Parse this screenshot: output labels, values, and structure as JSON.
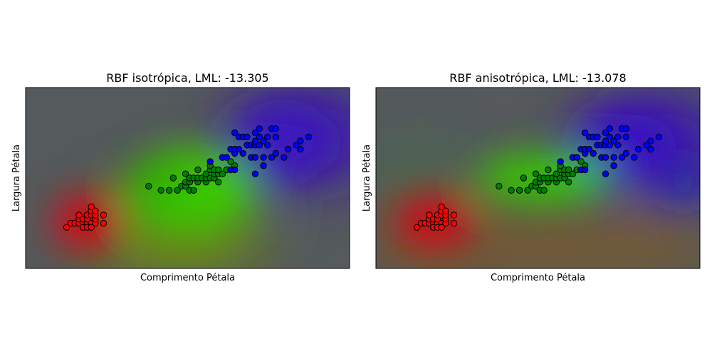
{
  "chart_data": [
    {
      "type": "scatter",
      "title": "RBF isotrópica, LML: -13.305",
      "xlabel": "Comprimento Pétala",
      "ylabel": "Largura Pétala",
      "xlim": [
        0.0,
        7.9
      ],
      "ylim": [
        -0.9,
        3.5
      ],
      "ticks": false,
      "background": "gaussian-process class probability map (red / green / blue)",
      "series": [
        {
          "color": "#ff0000",
          "points": [
            [
              1.0,
              0.1
            ],
            [
              1.1,
              0.2
            ],
            [
              1.2,
              0.2
            ],
            [
              1.3,
              0.2
            ],
            [
              1.4,
              0.2
            ],
            [
              1.5,
              0.2
            ],
            [
              1.6,
              0.2
            ],
            [
              1.7,
              0.2
            ],
            [
              1.9,
              0.2
            ],
            [
              1.3,
              0.3
            ],
            [
              1.4,
              0.3
            ],
            [
              1.5,
              0.3
            ],
            [
              1.7,
              0.3
            ],
            [
              1.3,
              0.4
            ],
            [
              1.5,
              0.4
            ],
            [
              1.6,
              0.4
            ],
            [
              1.7,
              0.4
            ],
            [
              1.9,
              0.4
            ],
            [
              1.6,
              0.5
            ],
            [
              1.7,
              0.5
            ],
            [
              1.6,
              0.6
            ],
            [
              1.4,
              0.1
            ],
            [
              1.5,
              0.1
            ],
            [
              1.6,
              0.1
            ]
          ]
        },
        {
          "color": "#008000",
          "points": [
            [
              3.0,
              1.1
            ],
            [
              3.3,
              1.0
            ],
            [
              3.5,
              1.0
            ],
            [
              3.7,
              1.0
            ],
            [
              3.5,
              1.0
            ],
            [
              3.6,
              1.3
            ],
            [
              3.8,
              1.1
            ],
            [
              3.9,
              1.1
            ],
            [
              3.9,
              1.2
            ],
            [
              3.9,
              1.4
            ],
            [
              4.0,
              1.0
            ],
            [
              4.0,
              1.2
            ],
            [
              4.0,
              1.3
            ],
            [
              4.1,
              1.0
            ],
            [
              4.1,
              1.3
            ],
            [
              4.2,
              1.2
            ],
            [
              4.2,
              1.3
            ],
            [
              4.2,
              1.5
            ],
            [
              4.3,
              1.3
            ],
            [
              4.4,
              1.2
            ],
            [
              4.4,
              1.3
            ],
            [
              4.4,
              1.4
            ],
            [
              4.5,
              1.3
            ],
            [
              4.5,
              1.5
            ],
            [
              4.5,
              1.6
            ],
            [
              4.6,
              1.3
            ],
            [
              4.6,
              1.4
            ],
            [
              4.6,
              1.5
            ],
            [
              4.7,
              1.2
            ],
            [
              4.7,
              1.4
            ],
            [
              4.7,
              1.5
            ],
            [
              4.8,
              1.4
            ],
            [
              4.8,
              1.8
            ],
            [
              4.9,
              1.5
            ],
            [
              5.0,
              1.7
            ],
            [
              5.1,
              1.6
            ]
          ]
        },
        {
          "color": "#0000ff",
          "points": [
            [
              4.5,
              1.7
            ],
            [
              4.8,
              1.8
            ],
            [
              4.9,
              1.8
            ],
            [
              5.0,
              1.5
            ],
            [
              5.0,
              2.0
            ],
            [
              5.1,
              1.5
            ],
            [
              5.1,
              1.9
            ],
            [
              5.1,
              2.0
            ],
            [
              5.1,
              2.4
            ],
            [
              5.2,
              2.0
            ],
            [
              5.2,
              2.3
            ],
            [
              5.3,
              1.9
            ],
            [
              5.3,
              2.3
            ],
            [
              5.4,
              2.1
            ],
            [
              5.4,
              2.3
            ],
            [
              5.5,
              1.8
            ],
            [
              5.5,
              2.1
            ],
            [
              5.6,
              1.4
            ],
            [
              5.6,
              1.8
            ],
            [
              5.6,
              2.1
            ],
            [
              5.6,
              2.2
            ],
            [
              5.6,
              2.4
            ],
            [
              5.7,
              2.1
            ],
            [
              5.7,
              2.3
            ],
            [
              5.7,
              2.5
            ],
            [
              5.8,
              1.6
            ],
            [
              5.8,
              1.8
            ],
            [
              5.8,
              2.2
            ],
            [
              5.9,
              2.1
            ],
            [
              5.9,
              2.3
            ],
            [
              6.0,
              1.8
            ],
            [
              6.0,
              2.5
            ],
            [
              6.1,
              1.9
            ],
            [
              6.1,
              2.3
            ],
            [
              6.1,
              2.5
            ],
            [
              6.3,
              1.8
            ],
            [
              6.4,
              2.0
            ],
            [
              6.6,
              2.1
            ],
            [
              6.7,
              2.0
            ],
            [
              6.7,
              2.2
            ],
            [
              6.9,
              2.3
            ]
          ]
        }
      ]
    },
    {
      "type": "scatter",
      "title": "RBF anisotrópica, LML: -13.078",
      "xlabel": "Comprimento Pétala",
      "ylabel": "Largura Pétala",
      "xlim": [
        0.0,
        7.9
      ],
      "ylim": [
        -0.9,
        3.5
      ],
      "ticks": false,
      "background": "gaussian-process class probability map (red / green / blue)",
      "series": [
        {
          "color": "#ff0000",
          "points": [
            [
              1.0,
              0.1
            ],
            [
              1.1,
              0.2
            ],
            [
              1.2,
              0.2
            ],
            [
              1.3,
              0.2
            ],
            [
              1.4,
              0.2
            ],
            [
              1.5,
              0.2
            ],
            [
              1.6,
              0.2
            ],
            [
              1.7,
              0.2
            ],
            [
              1.9,
              0.2
            ],
            [
              1.3,
              0.3
            ],
            [
              1.4,
              0.3
            ],
            [
              1.5,
              0.3
            ],
            [
              1.7,
              0.3
            ],
            [
              1.3,
              0.4
            ],
            [
              1.5,
              0.4
            ],
            [
              1.6,
              0.4
            ],
            [
              1.7,
              0.4
            ],
            [
              1.9,
              0.4
            ],
            [
              1.6,
              0.5
            ],
            [
              1.7,
              0.5
            ],
            [
              1.6,
              0.6
            ],
            [
              1.4,
              0.1
            ],
            [
              1.5,
              0.1
            ],
            [
              1.6,
              0.1
            ]
          ]
        },
        {
          "color": "#008000",
          "points": [
            [
              3.0,
              1.1
            ],
            [
              3.3,
              1.0
            ],
            [
              3.5,
              1.0
            ],
            [
              3.7,
              1.0
            ],
            [
              3.5,
              1.0
            ],
            [
              3.6,
              1.3
            ],
            [
              3.8,
              1.1
            ],
            [
              3.9,
              1.1
            ],
            [
              3.9,
              1.2
            ],
            [
              3.9,
              1.4
            ],
            [
              4.0,
              1.0
            ],
            [
              4.0,
              1.2
            ],
            [
              4.0,
              1.3
            ],
            [
              4.1,
              1.0
            ],
            [
              4.1,
              1.3
            ],
            [
              4.2,
              1.2
            ],
            [
              4.2,
              1.3
            ],
            [
              4.2,
              1.5
            ],
            [
              4.3,
              1.3
            ],
            [
              4.4,
              1.2
            ],
            [
              4.4,
              1.3
            ],
            [
              4.4,
              1.4
            ],
            [
              4.5,
              1.3
            ],
            [
              4.5,
              1.5
            ],
            [
              4.5,
              1.6
            ],
            [
              4.6,
              1.3
            ],
            [
              4.6,
              1.4
            ],
            [
              4.6,
              1.5
            ],
            [
              4.7,
              1.2
            ],
            [
              4.7,
              1.4
            ],
            [
              4.7,
              1.5
            ],
            [
              4.8,
              1.4
            ],
            [
              4.8,
              1.8
            ],
            [
              4.9,
              1.5
            ],
            [
              5.0,
              1.7
            ],
            [
              5.1,
              1.6
            ]
          ]
        },
        {
          "color": "#0000ff",
          "points": [
            [
              4.5,
              1.7
            ],
            [
              4.8,
              1.8
            ],
            [
              4.9,
              1.8
            ],
            [
              5.0,
              1.5
            ],
            [
              5.0,
              2.0
            ],
            [
              5.1,
              1.5
            ],
            [
              5.1,
              1.9
            ],
            [
              5.1,
              2.0
            ],
            [
              5.1,
              2.4
            ],
            [
              5.2,
              2.0
            ],
            [
              5.2,
              2.3
            ],
            [
              5.3,
              1.9
            ],
            [
              5.3,
              2.3
            ],
            [
              5.4,
              2.1
            ],
            [
              5.4,
              2.3
            ],
            [
              5.5,
              1.8
            ],
            [
              5.5,
              2.1
            ],
            [
              5.6,
              1.4
            ],
            [
              5.6,
              1.8
            ],
            [
              5.6,
              2.1
            ],
            [
              5.6,
              2.2
            ],
            [
              5.6,
              2.4
            ],
            [
              5.7,
              2.1
            ],
            [
              5.7,
              2.3
            ],
            [
              5.7,
              2.5
            ],
            [
              5.8,
              1.6
            ],
            [
              5.8,
              1.8
            ],
            [
              5.8,
              2.2
            ],
            [
              5.9,
              2.1
            ],
            [
              5.9,
              2.3
            ],
            [
              6.0,
              1.8
            ],
            [
              6.0,
              2.5
            ],
            [
              6.1,
              1.9
            ],
            [
              6.1,
              2.3
            ],
            [
              6.1,
              2.5
            ],
            [
              6.3,
              1.8
            ],
            [
              6.4,
              2.0
            ],
            [
              6.6,
              2.1
            ],
            [
              6.7,
              2.0
            ],
            [
              6.7,
              2.2
            ],
            [
              6.9,
              2.3
            ]
          ]
        }
      ]
    }
  ]
}
